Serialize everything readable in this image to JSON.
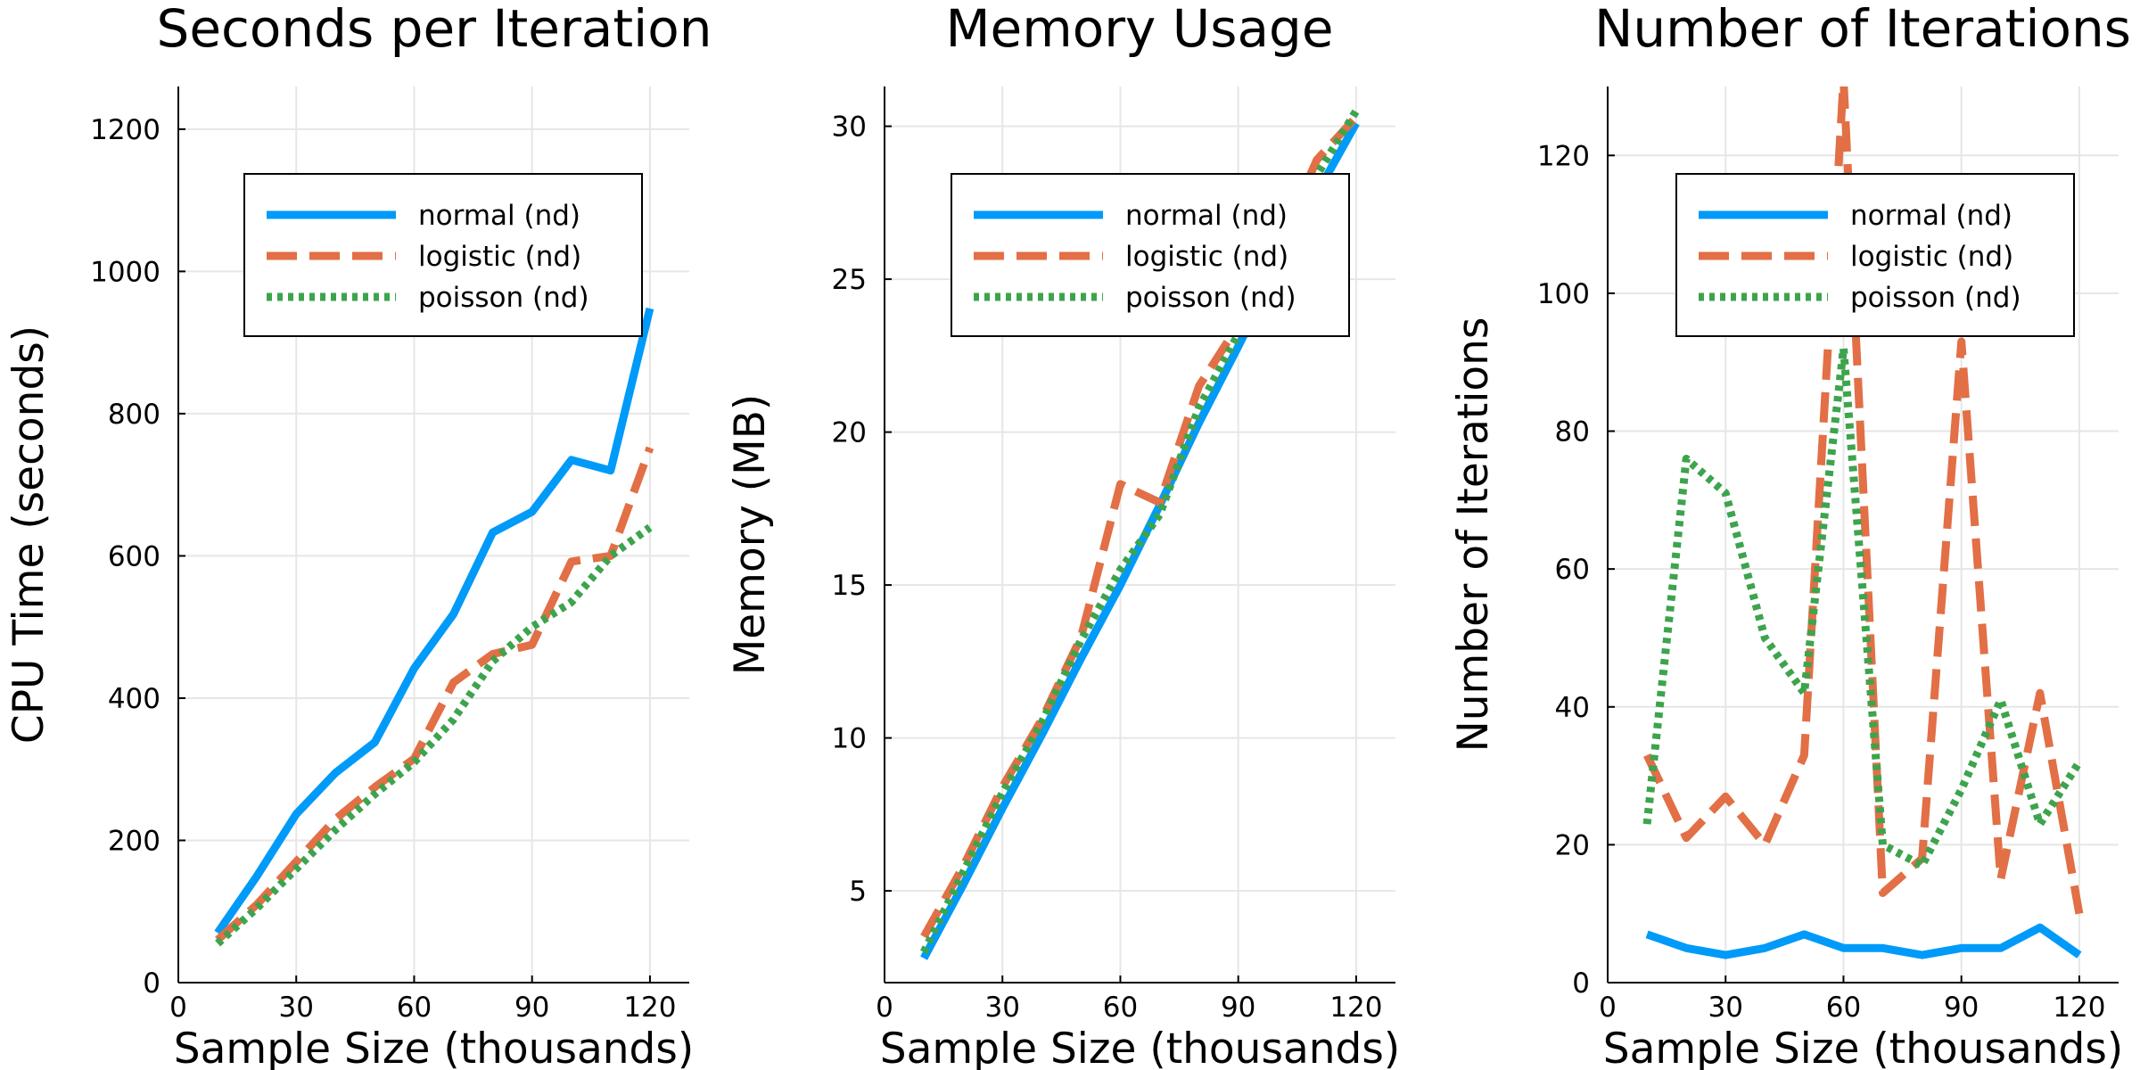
{
  "colors": {
    "normal": "#009af9",
    "logistic": "#e26f46",
    "poisson": "#3da44d"
  },
  "chart_data": [
    {
      "type": "line",
      "title": "Seconds per Iteration",
      "xlabel": "Sample Size (thousands)",
      "ylabel": "CPU Time (seconds)",
      "xlim": [
        0,
        130
      ],
      "ylim": [
        0,
        1260
      ],
      "xticks": [
        0,
        30,
        60,
        90,
        120
      ],
      "yticks": [
        0,
        200,
        400,
        600,
        800,
        1000,
        1200
      ],
      "grid": true,
      "legend": "top-right",
      "x": [
        10,
        20,
        30,
        40,
        50,
        60,
        70,
        80,
        90,
        100,
        110,
        120
      ],
      "series": [
        {
          "name": "normal (nd)",
          "style": "solid",
          "color": "#009af9",
          "values": [
            70,
            150,
            237,
            295,
            338,
            442,
            518,
            633,
            662,
            735,
            720,
            948
          ]
        },
        {
          "name": "logistic (nd)",
          "style": "dashed",
          "color": "#e26f46",
          "values": [
            60,
            110,
            170,
            230,
            275,
            315,
            422,
            462,
            475,
            592,
            600,
            752
          ]
        },
        {
          "name": "poisson (nd)",
          "style": "dotted",
          "color": "#3da44d",
          "values": [
            55,
            105,
            160,
            215,
            265,
            310,
            370,
            452,
            500,
            535,
            600,
            640
          ]
        }
      ]
    },
    {
      "type": "line",
      "title": "Memory Usage",
      "xlabel": "Sample Size (thousands)",
      "ylabel": "Memory (MB)",
      "xlim": [
        0,
        130
      ],
      "ylim": [
        2,
        31.3
      ],
      "xticks": [
        0,
        30,
        60,
        90,
        120
      ],
      "yticks": [
        5,
        10,
        15,
        20,
        25,
        30
      ],
      "grid": true,
      "legend": "top-right",
      "x": [
        10,
        20,
        30,
        40,
        50,
        60,
        70,
        80,
        90,
        100,
        110,
        120
      ],
      "series": [
        {
          "name": "normal (nd)",
          "style": "solid",
          "color": "#009af9",
          "values": [
            2.8,
            5.2,
            7.7,
            10.1,
            12.6,
            15.0,
            17.6,
            20.3,
            22.8,
            25.4,
            27.8,
            30.1
          ]
        },
        {
          "name": "logistic (nd)",
          "style": "dashed",
          "color": "#e26f46",
          "values": [
            3.5,
            5.8,
            8.4,
            10.6,
            13.3,
            18.3,
            17.7,
            21.5,
            23.5,
            26.0,
            28.9,
            30.3
          ]
        },
        {
          "name": "poisson (nd)",
          "style": "dotted",
          "color": "#3da44d",
          "values": [
            3.0,
            5.6,
            8.2,
            10.5,
            13.2,
            15.5,
            17.3,
            20.8,
            23.2,
            25.8,
            28.4,
            30.5
          ]
        }
      ]
    },
    {
      "type": "line",
      "title": "Number of Iterations",
      "xlabel": "Sample Size (thousands)",
      "ylabel": "Number of Iterations",
      "xlim": [
        0,
        130
      ],
      "ylim": [
        0,
        130
      ],
      "xticks": [
        0,
        30,
        60,
        90,
        120
      ],
      "yticks": [
        0,
        20,
        40,
        60,
        80,
        100,
        120
      ],
      "grid": true,
      "legend": "top-right",
      "x": [
        10,
        20,
        30,
        40,
        50,
        60,
        70,
        80,
        90,
        100,
        110,
        120
      ],
      "series": [
        {
          "name": "normal (nd)",
          "style": "solid",
          "color": "#009af9",
          "values": [
            7,
            5,
            4,
            5,
            7,
            5,
            5,
            4,
            5,
            5,
            8,
            4
          ]
        },
        {
          "name": "logistic (nd)",
          "style": "dashed",
          "color": "#e26f46",
          "values": [
            33,
            21,
            27,
            20,
            33,
            131,
            13,
            18,
            93,
            15,
            42,
            10
          ]
        },
        {
          "name": "poisson (nd)",
          "style": "dotted",
          "color": "#3da44d",
          "values": [
            23,
            76,
            71,
            50,
            42,
            92,
            20,
            17,
            28,
            41,
            23,
            32
          ]
        }
      ]
    }
  ]
}
